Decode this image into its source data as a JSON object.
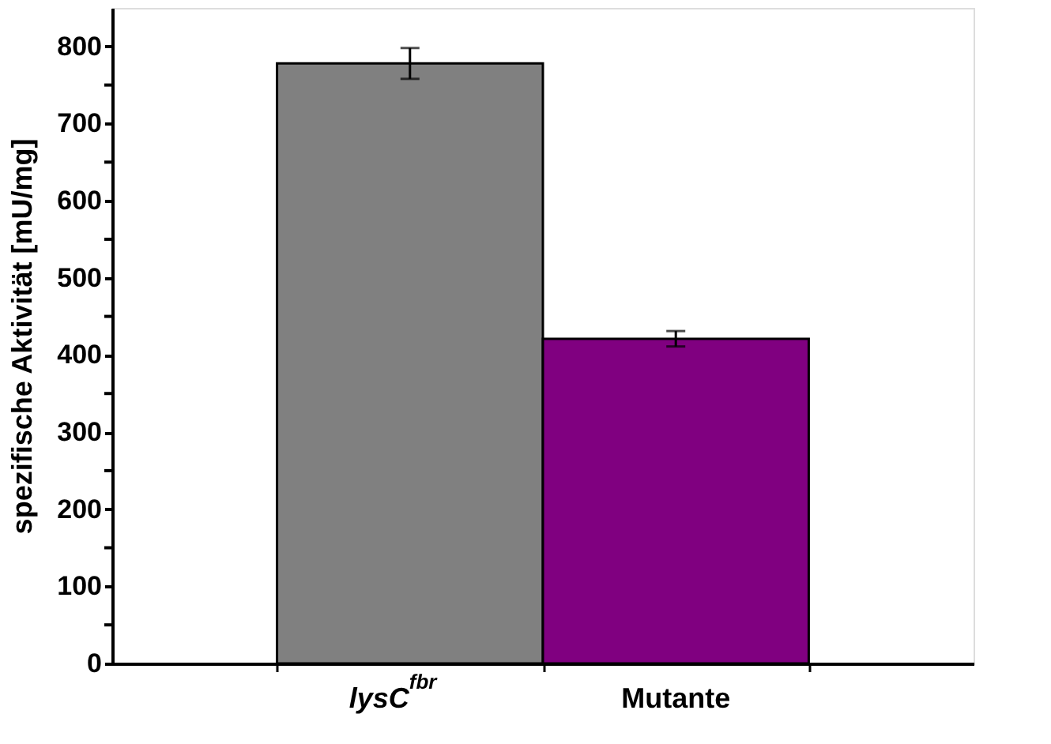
{
  "chart_data": {
    "type": "bar",
    "ylabel": "spezifische Aktivität [mU/mg]",
    "categories": [
      "lysC$^{fbr}$",
      "Mutante"
    ],
    "values": [
      778,
      421
    ],
    "errors": [
      20,
      10
    ],
    "colors": [
      "#808080",
      "#800080"
    ],
    "ylim": [
      0,
      850
    ],
    "yticks": [
      0,
      {
        "value": 50,
        "label": null
      },
      100,
      {
        "value": 150,
        "label": null
      },
      200,
      {
        "value": 250,
        "label": null
      },
      300,
      {
        "value": 350,
        "label": null
      },
      400,
      {
        "value": 450,
        "label": null
      },
      500,
      {
        "value": 550,
        "label": null
      },
      600,
      {
        "value": 650,
        "label": null
      },
      700,
      {
        "value": 750,
        "label": null
      },
      800
    ],
    "grid": false,
    "legend": false
  }
}
